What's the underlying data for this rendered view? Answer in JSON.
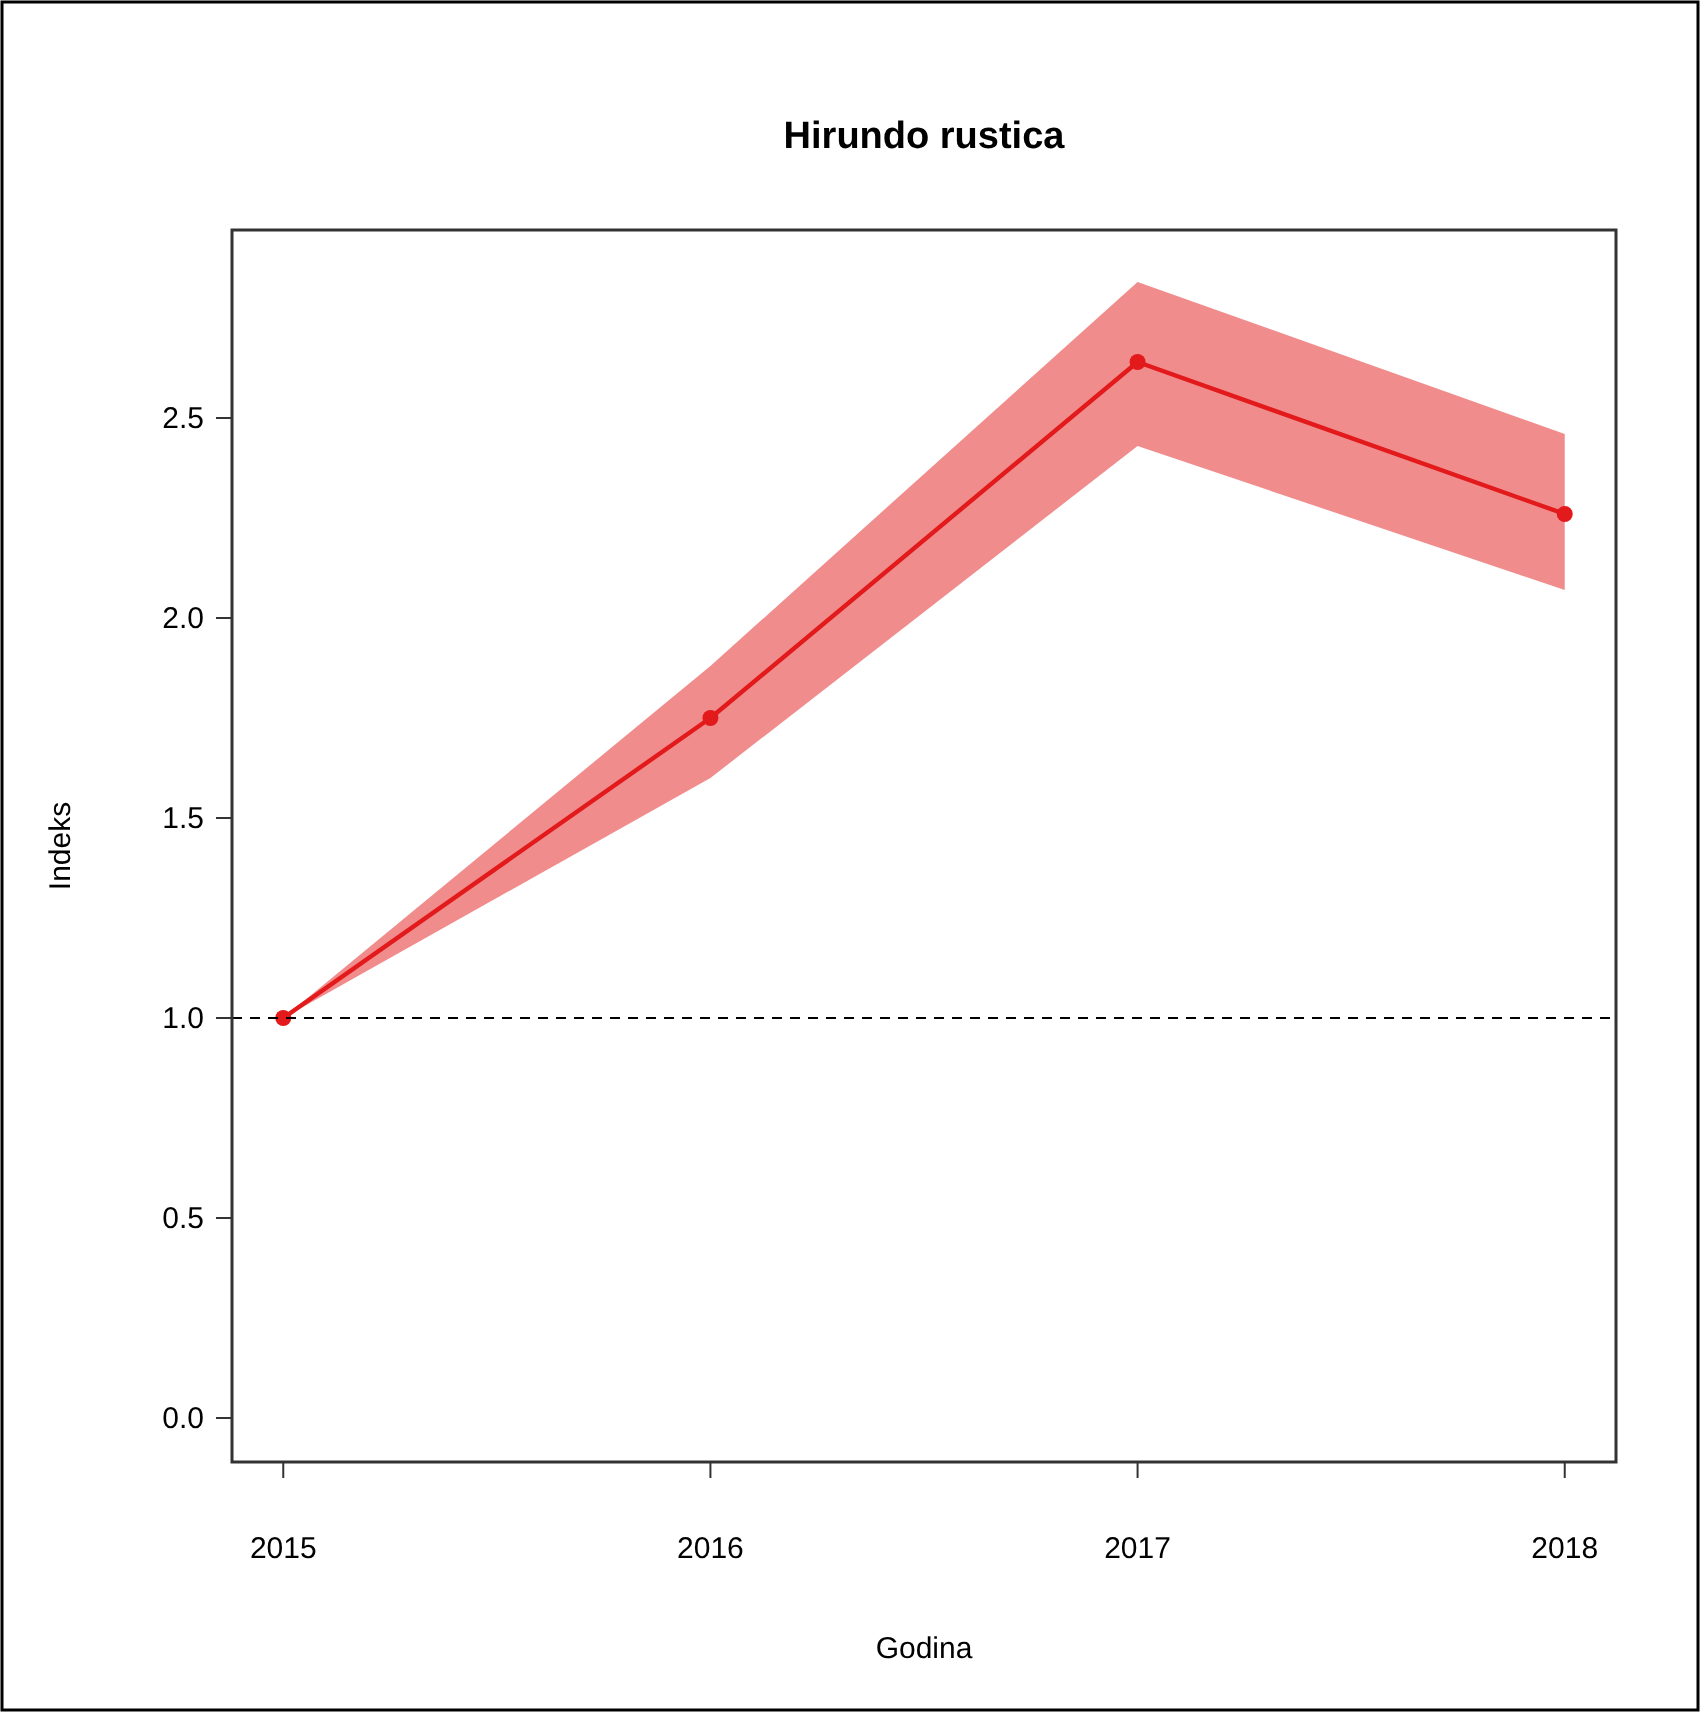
{
  "chart_data": {
    "type": "line",
    "title": "Hirundo rustica",
    "xlabel": "Godina",
    "ylabel": "Indeks",
    "x": [
      2015,
      2016,
      2017,
      2018
    ],
    "series": [
      {
        "color": "#e31a1c",
        "values": [
          1.0,
          1.75,
          2.64,
          2.26
        ],
        "lower": [
          1.0,
          1.6,
          2.43,
          2.07
        ],
        "upper": [
          1.0,
          1.88,
          2.84,
          2.46
        ]
      }
    ],
    "xlim": [
      2014.88,
      2018.12
    ],
    "xticks": [
      2015,
      2016,
      2017,
      2018
    ],
    "ylim": [
      -0.11,
      2.97
    ],
    "yticks": [
      {
        "value": 0,
        "label": "0.0"
      },
      {
        "value": 0.5,
        "label": "0.5"
      },
      {
        "value": 1,
        "label": "1.0"
      },
      {
        "value": 1.5,
        "label": "1.5"
      },
      {
        "value": 2,
        "label": "2.0"
      },
      {
        "value": 2.5,
        "label": "2.5"
      }
    ],
    "ref_lines": [
      {
        "axis": "y",
        "value": 1,
        "label": null,
        "color": "#000000",
        "line_style": "dashed"
      }
    ],
    "grid": false,
    "marker": "circle",
    "line_style": "solid"
  }
}
